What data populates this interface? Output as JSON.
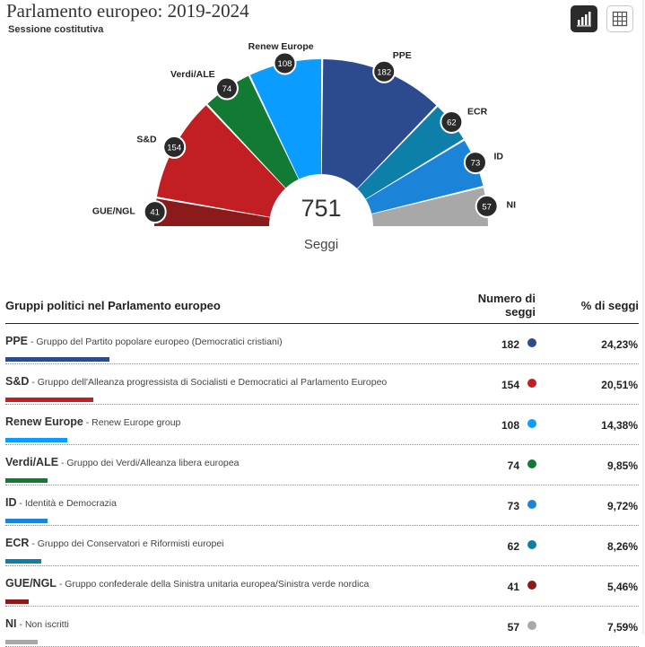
{
  "header": {
    "title": "Parlamento europeo: 2019-2024",
    "subtitle": "Sessione costitutiva"
  },
  "view_toggle": {
    "chart_icon": "bar-chart-icon",
    "table_icon": "table-grid-icon",
    "active": "chart"
  },
  "chart_data": {
    "type": "hemicycle",
    "total": "751",
    "total_label": "Seggi",
    "series": [
      {
        "abbr": "GUE/NGL",
        "seats": 41,
        "color": "#8b1a1a"
      },
      {
        "abbr": "S&D",
        "seats": 154,
        "color": "#c21f24"
      },
      {
        "abbr": "Verdi/ALE",
        "seats": 74,
        "color": "#137a34"
      },
      {
        "abbr": "Renew Europe",
        "seats": 108,
        "color": "#0a9dff"
      },
      {
        "abbr": "PPE",
        "seats": 182,
        "color": "#2c4a8e"
      },
      {
        "abbr": "ECR",
        "seats": 62,
        "color": "#0e7fa8"
      },
      {
        "abbr": "ID",
        "seats": 73,
        "color": "#1c84d8"
      },
      {
        "abbr": "NI",
        "seats": 57,
        "color": "#a8a8a8"
      }
    ]
  },
  "table": {
    "col_name": "Gruppi politici nel Parlamento europeo",
    "col_seats": "Numero di seggi",
    "col_pct": "% di seggi",
    "rows": [
      {
        "abbr": "PPE",
        "name": " - Gruppo del Partito popolare europeo (Democratici cristiani)",
        "seats": "182",
        "pct": "24,23%",
        "share": 0.2423,
        "color": "#2c4a8e"
      },
      {
        "abbr": "S&D",
        "name": " - Gruppo dell'Alleanza progressista di Socialisti e Democratici al Parlamento Europeo",
        "seats": "154",
        "pct": "20,51%",
        "share": 0.2051,
        "color": "#c21f24"
      },
      {
        "abbr": "Renew Europe",
        "name": " - Renew Europe group",
        "seats": "108",
        "pct": "14,38%",
        "share": 0.1438,
        "color": "#0a9dff"
      },
      {
        "abbr": "Verdi/ALE",
        "name": " - Gruppo dei Verdi/Alleanza libera europea",
        "seats": "74",
        "pct": "9,85%",
        "share": 0.0985,
        "color": "#137a34"
      },
      {
        "abbr": "ID",
        "name": " - Identità e Democrazia",
        "seats": "73",
        "pct": "9,72%",
        "share": 0.0972,
        "color": "#1c84d8"
      },
      {
        "abbr": "ECR",
        "name": " - Gruppo dei Conservatori e Riformisti europei",
        "seats": "62",
        "pct": "8,26%",
        "share": 0.0826,
        "color": "#0e7fa8"
      },
      {
        "abbr": "GUE/NGL",
        "name": " - Gruppo confederale della Sinistra unitaria europea/Sinistra verde nordica",
        "seats": "41",
        "pct": "5,46%",
        "share": 0.0546,
        "color": "#8b1a1a"
      },
      {
        "abbr": "NI",
        "name": " - Non iscritti",
        "seats": "57",
        "pct": "7,59%",
        "share": 0.0759,
        "color": "#a8a8a8"
      }
    ]
  }
}
